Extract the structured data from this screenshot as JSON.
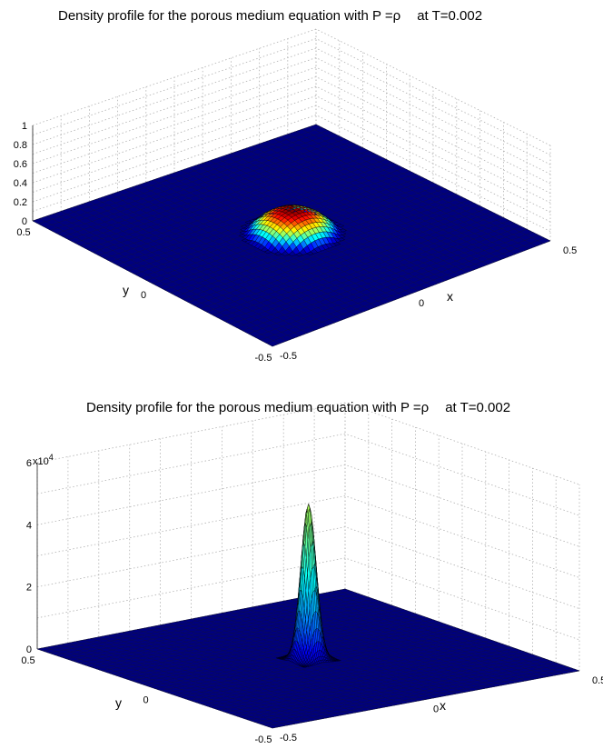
{
  "chart_data": [
    {
      "type": "surface",
      "title_main": "Density profile for the porous medium equation with P =ρ",
      "title_suffix": "at T=0.002",
      "xlabel": "x",
      "ylabel": "y",
      "xlim": [
        -0.5,
        0.5
      ],
      "ylim": [
        -0.5,
        0.5
      ],
      "zlim": [
        0,
        1
      ],
      "x_ticks": [
        "-0.5",
        "0",
        "0.5"
      ],
      "y_ticks": [
        "-0.5",
        "0",
        "0.5"
      ],
      "z_ticks": [
        "0",
        "0.2",
        "0.4",
        "0.6",
        "0.8",
        "1"
      ],
      "z_exponent_label": "",
      "surface": {
        "shape": "compact-dome",
        "peak": 0.25,
        "center": [
          0,
          0
        ],
        "support_radius": 0.13
      },
      "colormap": [
        "#00007f",
        "#0000ff",
        "#007fff",
        "#00ffff",
        "#7fff7f",
        "#ffff00",
        "#ff7f00",
        "#ff0000",
        "#7f0000"
      ]
    },
    {
      "type": "surface",
      "title_main": "Density profile for the porous medium equation with P =ρ",
      "title_suffix": "at T=0.002",
      "xlabel": "x",
      "ylabel": "y",
      "xlim": [
        -0.5,
        0.5
      ],
      "ylim": [
        -0.5,
        0.5
      ],
      "zlim": [
        0,
        60000
      ],
      "x_ticks": [
        "-0.5",
        "0",
        "0.5"
      ],
      "y_ticks": [
        "-0.5",
        "0",
        "0.5"
      ],
      "z_ticks": [
        "0",
        "2",
        "4",
        "6"
      ],
      "z_exponent_label": "x10",
      "z_exponent_power": "4",
      "surface": {
        "shape": "spike",
        "peak": 50000,
        "center": [
          0,
          0
        ],
        "support_radius": 0.02
      },
      "colormap": [
        "#00007f",
        "#0000ff",
        "#007fff",
        "#00ffff",
        "#7fff7f",
        "#ffff00",
        "#ff7f00",
        "#ff0000",
        "#7f0000"
      ]
    }
  ]
}
